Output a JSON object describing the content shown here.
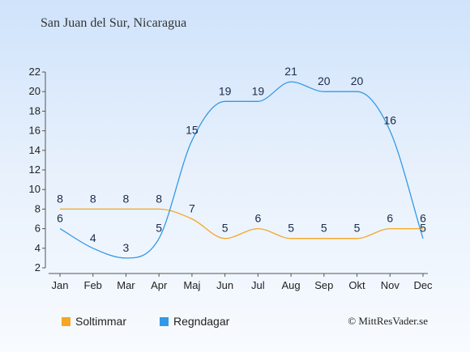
{
  "chart_data": {
    "type": "line",
    "title": "San Juan del Sur, Nicaragua",
    "categories": [
      "Jan",
      "Feb",
      "Mar",
      "Apr",
      "Maj",
      "Jun",
      "Jul",
      "Aug",
      "Sep",
      "Okt",
      "Nov",
      "Dec"
    ],
    "ylim": [
      2,
      22
    ],
    "yticks": [
      2,
      4,
      6,
      8,
      10,
      12,
      14,
      16,
      18,
      20,
      22
    ],
    "grid": false,
    "legend_position": "bottom-left",
    "series": [
      {
        "name": "Soltimmar",
        "color": "#f5a623",
        "values": [
          8,
          8,
          8,
          8,
          7,
          5,
          6,
          5,
          5,
          5,
          6,
          6
        ]
      },
      {
        "name": "Regndagar",
        "color": "#3399e6",
        "values": [
          6,
          4,
          3,
          5,
          15,
          19,
          19,
          21,
          20,
          20,
          16,
          5
        ]
      }
    ]
  },
  "copyright": "© MittResVader.se"
}
